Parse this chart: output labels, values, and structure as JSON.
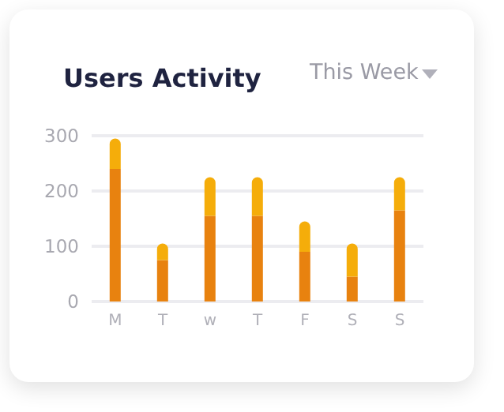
{
  "chart_data": {
    "type": "bar",
    "title": "Users Activity",
    "subtitle": "This Week",
    "categories": [
      "M",
      "T",
      "w",
      "T",
      "F",
      "S",
      "S"
    ],
    "stacked": true,
    "series": [
      {
        "color": "#e8820f",
        "values": [
          240,
          75,
          155,
          155,
          90,
          45,
          165
        ]
      },
      {
        "color": "#f5ad0a",
        "values": [
          55,
          30,
          70,
          70,
          55,
          60,
          60
        ]
      }
    ],
    "ylim": [
      0,
      300
    ],
    "yticks": [
      0,
      100,
      200,
      300
    ],
    "grid": "y",
    "legend": false
  }
}
